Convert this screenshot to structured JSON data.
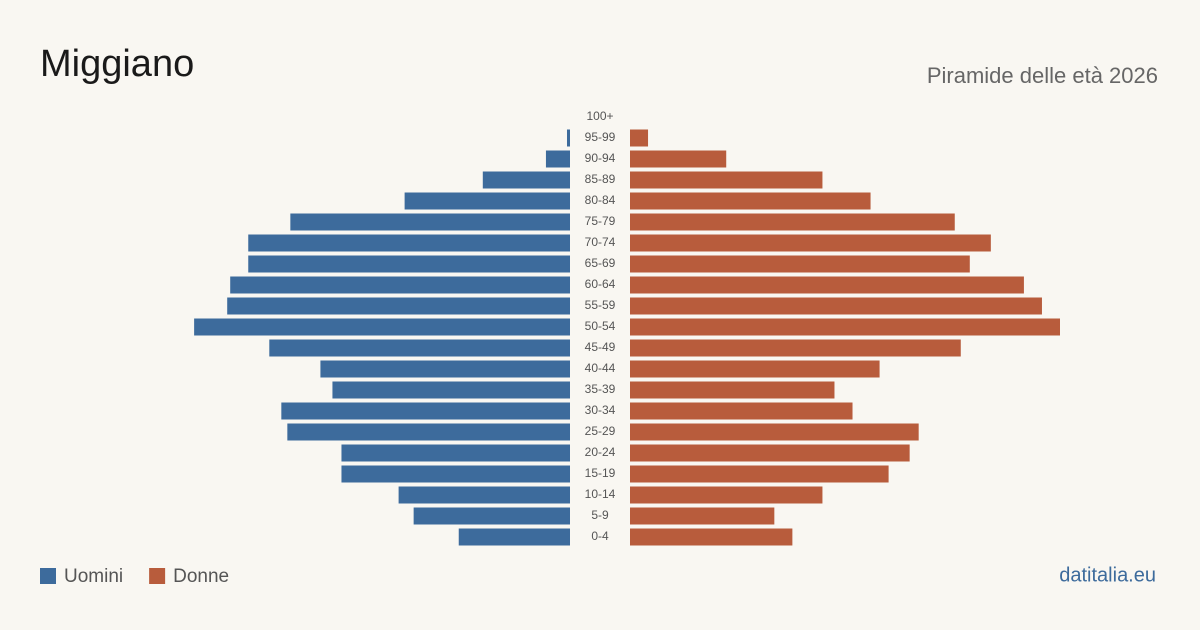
{
  "chart_data": {
    "type": "pyramid",
    "title": "Miggiano",
    "subtitle": "Piramide delle età 2026",
    "source": "datitalia.eu",
    "categories": [
      "100+",
      "95-99",
      "90-94",
      "85-89",
      "80-84",
      "75-79",
      "70-74",
      "65-69",
      "60-64",
      "55-59",
      "50-54",
      "45-49",
      "40-44",
      "35-39",
      "30-34",
      "25-29",
      "20-24",
      "15-19",
      "10-14",
      "5-9",
      "0-4"
    ],
    "series": [
      {
        "name": "Uomini",
        "color": "#3d6b9c",
        "values": [
          0,
          1,
          8,
          29,
          55,
          93,
          107,
          107,
          113,
          114,
          125,
          100,
          83,
          79,
          96,
          94,
          76,
          76,
          57,
          52,
          37
        ]
      },
      {
        "name": "Donne",
        "color": "#b85c3c",
        "values": [
          0,
          6,
          32,
          64,
          80,
          108,
          120,
          113,
          131,
          137,
          143,
          110,
          83,
          68,
          74,
          96,
          93,
          86,
          64,
          48,
          54
        ]
      }
    ],
    "legend": "bottom-left"
  }
}
